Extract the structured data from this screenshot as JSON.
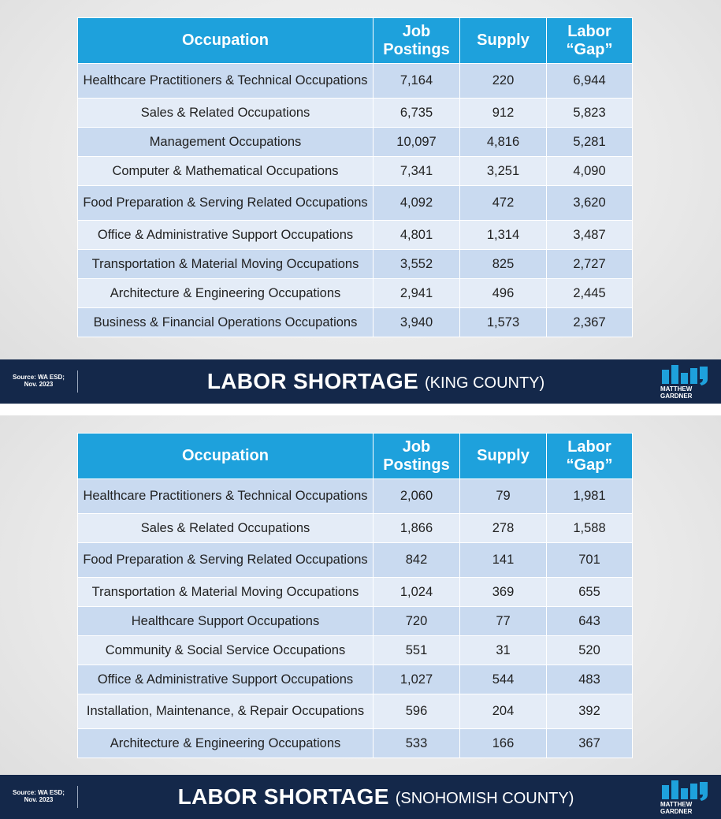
{
  "slides": [
    {
      "headers": {
        "occupation": "Occupation",
        "job_postings": "Job Postings",
        "supply": "Supply",
        "gap": "Labor “Gap”"
      },
      "rows": [
        {
          "occupation": "Healthcare Practitioners & Technical Occupations",
          "job_postings": "7,164",
          "supply": "220",
          "gap": "6,944"
        },
        {
          "occupation": "Sales & Related Occupations",
          "job_postings": "6,735",
          "supply": "912",
          "gap": "5,823"
        },
        {
          "occupation": "Management Occupations",
          "job_postings": "10,097",
          "supply": "4,816",
          "gap": "5,281"
        },
        {
          "occupation": "Computer & Mathematical Occupations",
          "job_postings": "7,341",
          "supply": "3,251",
          "gap": "4,090"
        },
        {
          "occupation": "Food Preparation & Serving Related Occupations",
          "job_postings": "4,092",
          "supply": "472",
          "gap": "3,620"
        },
        {
          "occupation": "Office & Administrative Support Occupations",
          "job_postings": "4,801",
          "supply": "1,314",
          "gap": "3,487"
        },
        {
          "occupation": "Transportation & Material Moving Occupations",
          "job_postings": "3,552",
          "supply": "825",
          "gap": "2,727"
        },
        {
          "occupation": "Architecture & Engineering Occupations",
          "job_postings": "2,941",
          "supply": "496",
          "gap": "2,445"
        },
        {
          "occupation": "Business & Financial Operations Occupations",
          "job_postings": "3,940",
          "supply": "1,573",
          "gap": "2,367"
        }
      ],
      "footer": {
        "source": "Source: WA ESD; Nov. 2023",
        "title": "LABOR SHORTAGE",
        "subtitle": "(KING COUNTY)",
        "logo_text": "MATTHEW GARDNER"
      }
    },
    {
      "headers": {
        "occupation": "Occupation",
        "job_postings": "Job Postings",
        "supply": "Supply",
        "gap": "Labor “Gap”"
      },
      "rows": [
        {
          "occupation": "Healthcare Practitioners & Technical Occupations",
          "job_postings": "2,060",
          "supply": "79",
          "gap": "1,981"
        },
        {
          "occupation": "Sales & Related Occupations",
          "job_postings": "1,866",
          "supply": "278",
          "gap": "1,588"
        },
        {
          "occupation": "Food Preparation & Serving Related Occupations",
          "job_postings": "842",
          "supply": "141",
          "gap": "701"
        },
        {
          "occupation": "Transportation & Material Moving Occupations",
          "job_postings": "1,024",
          "supply": "369",
          "gap": "655"
        },
        {
          "occupation": "Healthcare Support Occupations",
          "job_postings": "720",
          "supply": "77",
          "gap": "643"
        },
        {
          "occupation": "Community & Social Service Occupations",
          "job_postings": "551",
          "supply": "31",
          "gap": "520"
        },
        {
          "occupation": "Office & Administrative Support Occupations",
          "job_postings": "1,027",
          "supply": "544",
          "gap": "483"
        },
        {
          "occupation": "Installation, Maintenance, & Repair Occupations",
          "job_postings": "596",
          "supply": "204",
          "gap": "392"
        },
        {
          "occupation": "Architecture & Engineering Occupations",
          "job_postings": "533",
          "supply": "166",
          "gap": "367"
        }
      ],
      "footer": {
        "source": "Source: WA ESD; Nov. 2023",
        "title": "LABOR SHORTAGE",
        "subtitle": "(SNOHOMISH COUNTY)",
        "logo_text": "MATTHEW GARDNER"
      }
    }
  ],
  "colors": {
    "header": "#1ea1dc",
    "row_dark": "#c9daf0",
    "row_light": "#e4ecf7",
    "footer": "#14284a",
    "logo": "#1ea1dc"
  },
  "icons": {
    "logo": "matthew-gardner-bar-logo"
  }
}
